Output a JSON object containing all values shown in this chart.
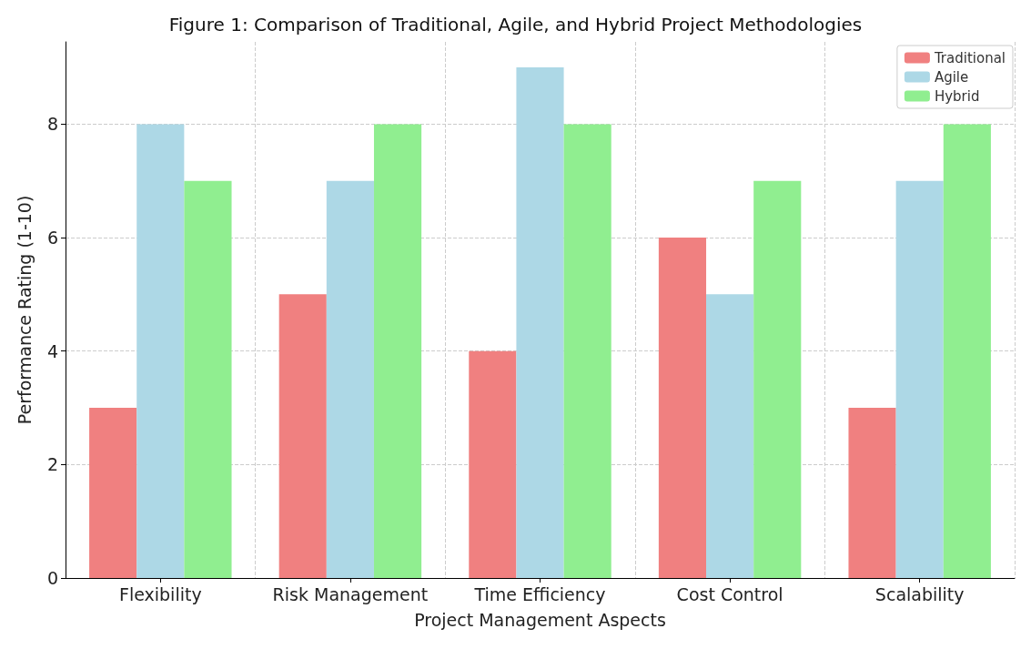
{
  "chart_data": {
    "type": "bar",
    "title": "Figure 1: Comparison of Traditional, Agile, and Hybrid Project Methodologies",
    "xlabel": "Project Management Aspects",
    "ylabel": "Performance Rating (1-10)",
    "categories": [
      "Flexibility",
      "Risk Management",
      "Time Efficiency",
      "Cost Control",
      "Scalability"
    ],
    "series": [
      {
        "name": "Traditional",
        "color": "#f08080",
        "values": [
          3,
          5,
          4,
          6,
          3
        ]
      },
      {
        "name": "Agile",
        "color": "#add8e6",
        "values": [
          8,
          7,
          9,
          5,
          7
        ]
      },
      {
        "name": "Hybrid",
        "color": "#90ee90",
        "values": [
          7,
          8,
          8,
          7,
          8
        ]
      }
    ],
    "ylim": [
      0,
      9.45
    ],
    "yticks": [
      0,
      2,
      4,
      6,
      8
    ],
    "grid": true,
    "legend": "top right"
  }
}
